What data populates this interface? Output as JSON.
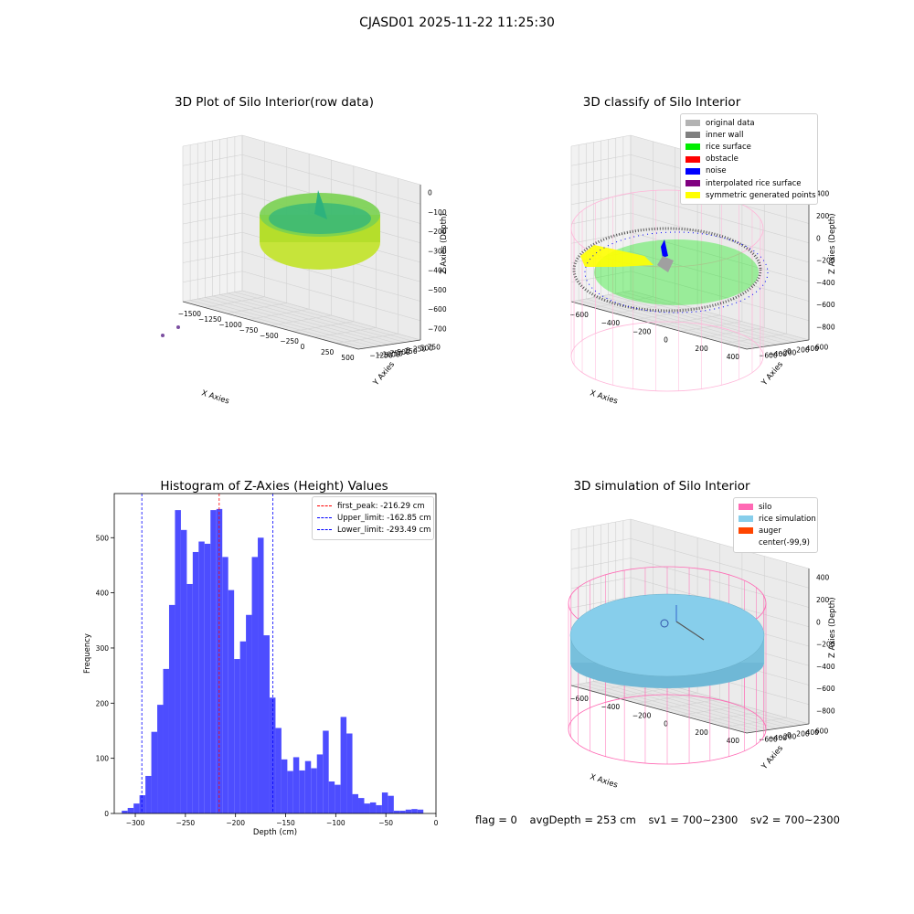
{
  "suptitle": "CJASD01 2025-11-22 11:25:30",
  "chart_data": [
    {
      "type": "scatter",
      "title": "3D Plot of Silo Interior(row data)",
      "xlabel": "X Axies",
      "ylabel": "Y Axies",
      "zlabel": "Z Axies (Depth)",
      "x_ticks": [
        "−1500",
        "−1250",
        "−1000",
        "−750",
        "−500",
        "−250",
        "0",
        "250",
        "500"
      ],
      "y_ticks": [
        "750",
        "500",
        "250",
        "0",
        "−250",
        "−500",
        "−750",
        "−1000",
        "−1250"
      ],
      "z_ticks": [
        "0",
        "−100",
        "−200",
        "−300",
        "−400",
        "−500",
        "−600",
        "−700"
      ]
    },
    {
      "type": "scatter",
      "title": "3D classify of Silo Interior",
      "xlabel": "X Axies",
      "ylabel": "Y Axies",
      "zlabel": "Z Axies (Depth)",
      "x_ticks": [
        "−600",
        "−400",
        "−200",
        "0",
        "200",
        "400"
      ],
      "y_ticks": [
        "600",
        "400",
        "200",
        "0",
        "−200",
        "−400",
        "−600"
      ],
      "z_ticks": [
        "400",
        "200",
        "0",
        "−200",
        "−400",
        "−600",
        "−800"
      ],
      "legend": [
        {
          "label": "original data",
          "color": "#b3b3b3"
        },
        {
          "label": "inner wall",
          "color": "#808080"
        },
        {
          "label": "rice surface",
          "color": "#00ee00"
        },
        {
          "label": "obstacle",
          "color": "#ff0000"
        },
        {
          "label": "noise",
          "color": "#0000ff"
        },
        {
          "label": "interpolated rice surface",
          "color": "#800080"
        },
        {
          "label": "symmetric generated points",
          "color": "#ffff00"
        }
      ]
    },
    {
      "type": "bar",
      "title": "Histogram of Z-Axies (Height) Values",
      "xlabel": "Depth (cm)",
      "ylabel": "Frequency",
      "xlim": [
        -321,
        0
      ],
      "ylim": [
        0,
        580
      ],
      "bin_start": -313.5,
      "bin_width": 5.9,
      "values": [
        5,
        10,
        18,
        33,
        68,
        148,
        197,
        262,
        378,
        550,
        514,
        416,
        474,
        493,
        489,
        550,
        552,
        465,
        405,
        280,
        312,
        360,
        465,
        500,
        323,
        210,
        155,
        98,
        77,
        102,
        78,
        95,
        82,
        107,
        150,
        58,
        52,
        175,
        145,
        35,
        28,
        18,
        20,
        15,
        38,
        32,
        5,
        5,
        7,
        8,
        7
      ],
      "x_ticks": [
        -300,
        -250,
        -200,
        -150,
        -100,
        -50,
        0
      ],
      "y_ticks": [
        0,
        100,
        200,
        300,
        400,
        500
      ],
      "vlines": [
        {
          "x": -216.29,
          "color": "#ff0000",
          "label": "first_peak: -216.29 cm"
        },
        {
          "x": -162.85,
          "color": "#0000ff",
          "label": "Upper_limit: -162.85 cm"
        },
        {
          "x": -293.49,
          "color": "#0000ff",
          "label": "Lower_limit: -293.49 cm"
        }
      ],
      "bar_color": "#4d4dff"
    },
    {
      "type": "scatter",
      "title": "3D simulation of Silo Interior",
      "xlabel": "X Axies",
      "ylabel": "Y Axies",
      "zlabel": "Z Axies (Depth)",
      "x_ticks": [
        "−600",
        "−400",
        "−200",
        "0",
        "200",
        "400"
      ],
      "y_ticks": [
        "600",
        "400",
        "200",
        "0",
        "−200",
        "−400",
        "−600"
      ],
      "z_ticks": [
        "400",
        "200",
        "0",
        "−200",
        "−400",
        "−600",
        "−800"
      ],
      "legend": [
        {
          "label": "silo",
          "color": "#ff69b4"
        },
        {
          "label": "rice simulation",
          "color": "#87ceeb"
        },
        {
          "label": "auger",
          "color": "#ff4500"
        },
        {
          "label": "center(-99,9)",
          "color": "#ffffff"
        }
      ]
    }
  ],
  "footer": {
    "flag": "flag = 0",
    "avg": "avgDepth = 253 cm",
    "sv1": "sv1 = 700~2300",
    "sv2": "sv2 = 700~2300"
  }
}
